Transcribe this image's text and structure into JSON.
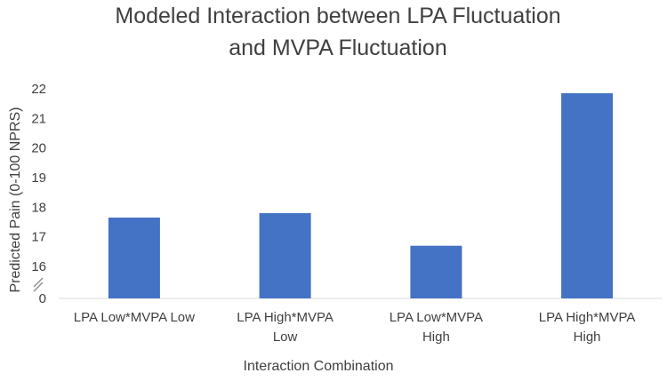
{
  "chart_data": {
    "type": "bar",
    "title": "Modeled Interaction between LPA Fluctuation and MVPA Fluctuation",
    "title_lines": [
      "Modeled Interaction between LPA Fluctuation",
      "and MVPA Fluctuation"
    ],
    "xlabel": "Interaction Combination",
    "ylabel": "Predicted Pain (0-100 NPRS)",
    "categories": [
      "LPA Low*MVPA Low",
      "LPA High*MVPA Low",
      "LPA Low*MVPA High",
      "LPA High*MVPA High"
    ],
    "category_lines": [
      [
        "LPA Low*MVPA Low"
      ],
      [
        "LPA High*MVPA",
        "Low"
      ],
      [
        "LPA Low*MVPA",
        "High"
      ],
      [
        "LPA High*MVPA",
        "High"
      ]
    ],
    "values": [
      17.65,
      17.8,
      16.7,
      21.85
    ],
    "y_ticks": [
      "0",
      "16",
      "17",
      "18",
      "19",
      "20",
      "21",
      "22"
    ],
    "y_tick_values": [
      0,
      16,
      17,
      18,
      19,
      20,
      21,
      22
    ],
    "ylim": [
      15.25,
      22
    ],
    "axis_break": true,
    "grid": false,
    "legend": "none",
    "bar_color": "#4472C4"
  }
}
